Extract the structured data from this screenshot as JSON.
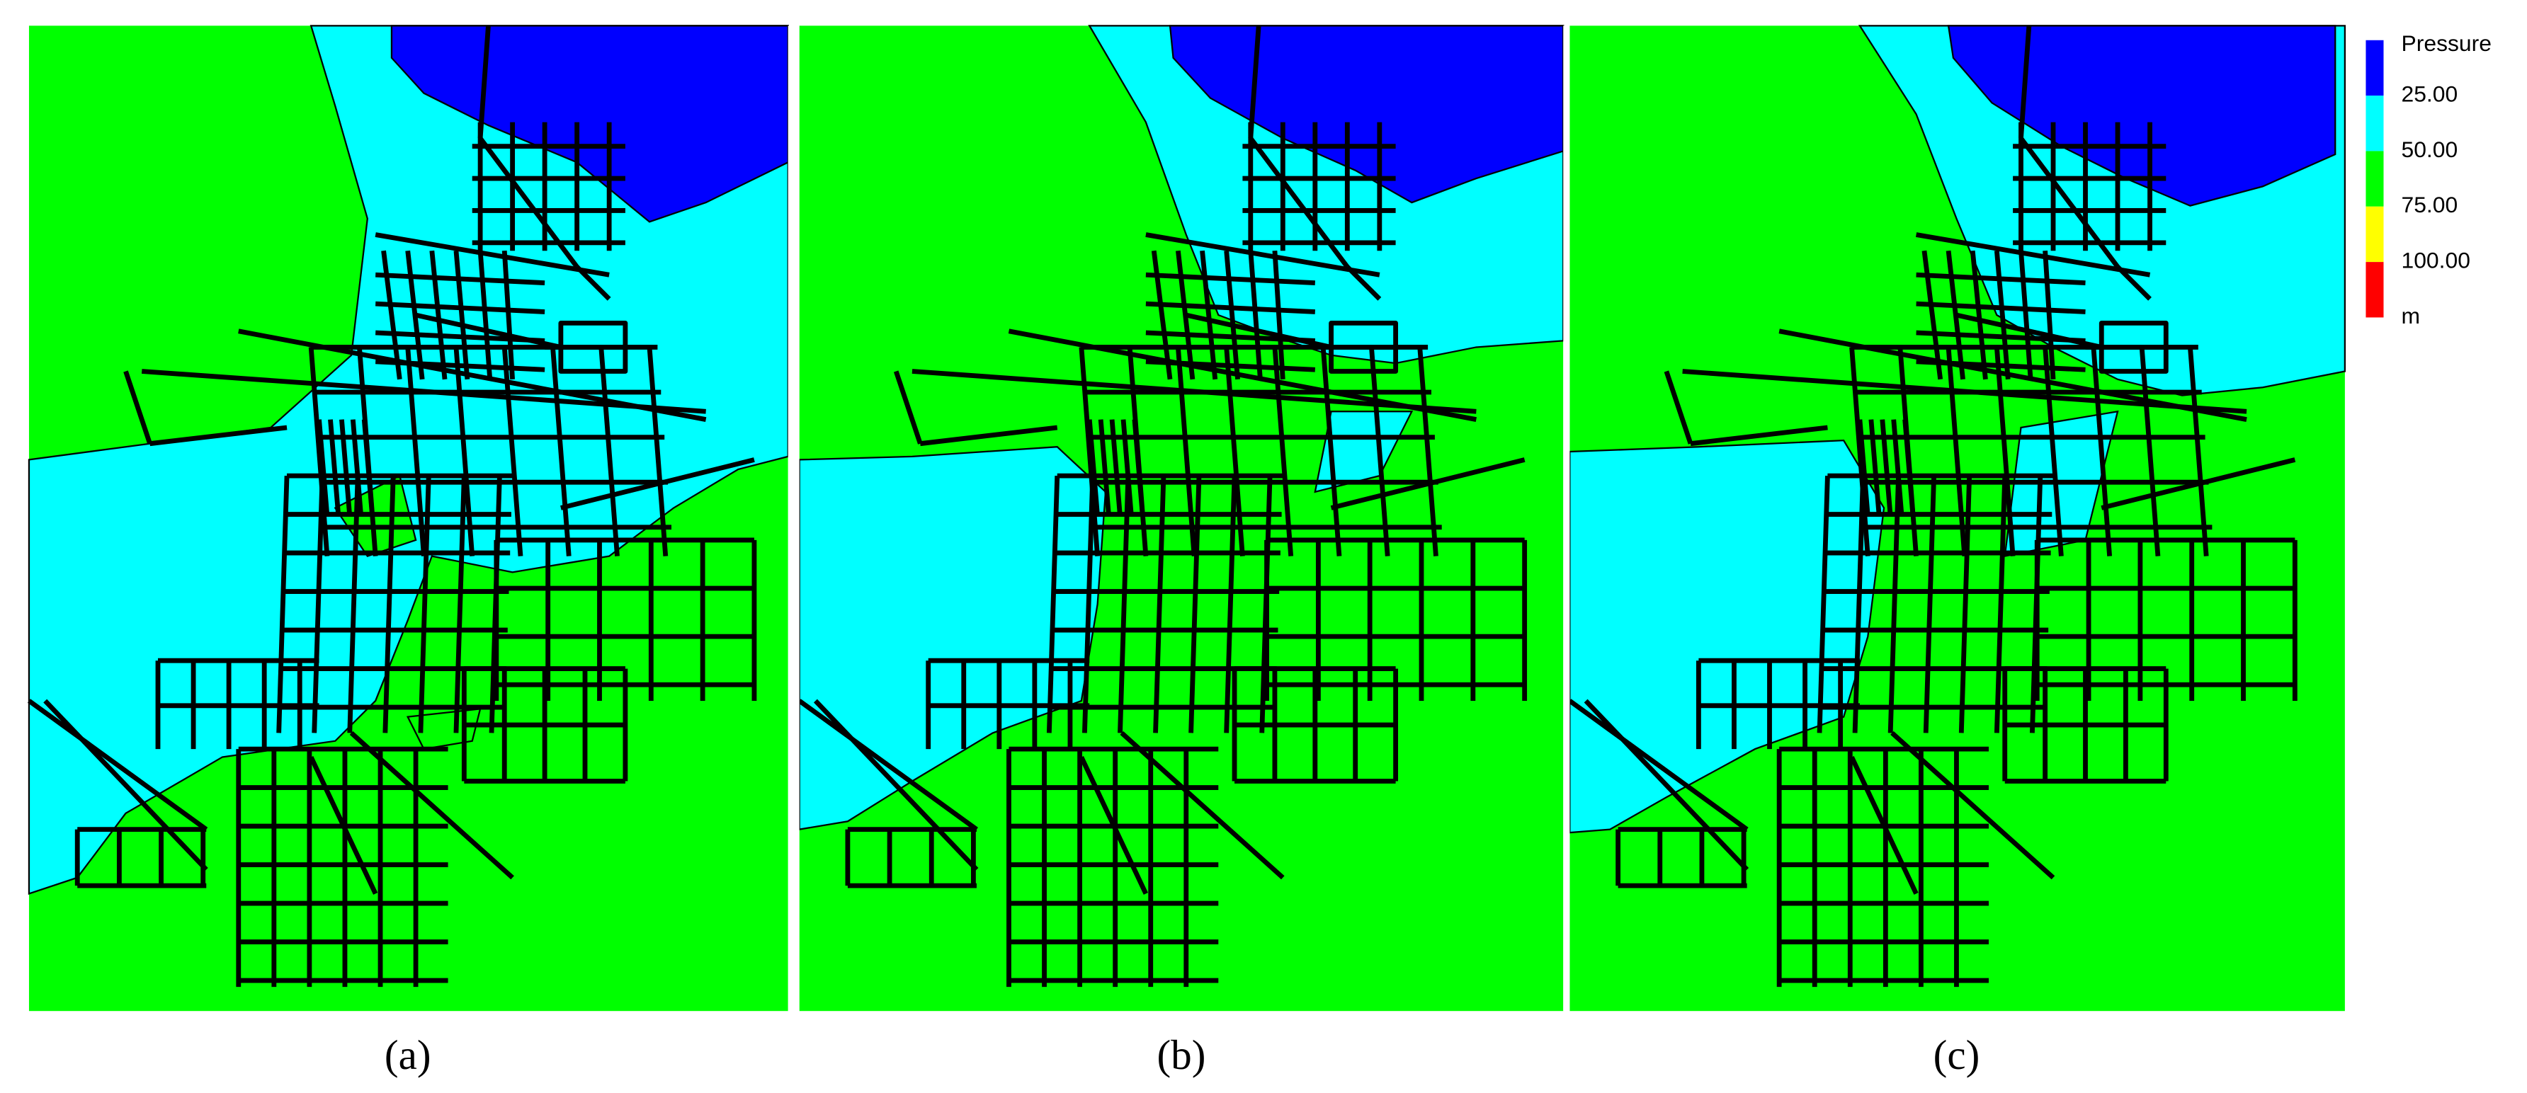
{
  "panels": [
    {
      "label": "(a)"
    },
    {
      "label": "(b)"
    },
    {
      "label": "(c)"
    }
  ],
  "legend": {
    "title": "Pressure",
    "entries": [
      {
        "label": "25.00",
        "color": "#0000ff"
      },
      {
        "label": "50.00",
        "color": "#00ffff"
      },
      {
        "label": "75.00",
        "color": "#00ff00"
      },
      {
        "label": "100.00",
        "color": "#ffff00"
      },
      {
        "label": "m",
        "color": "#ff0000"
      }
    ]
  }
}
